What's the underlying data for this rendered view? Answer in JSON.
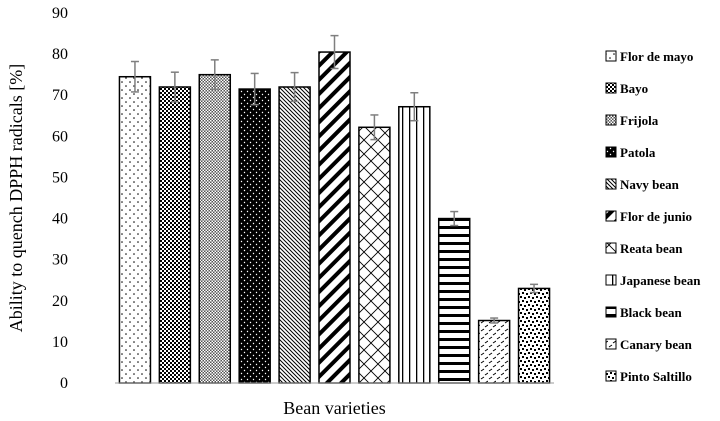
{
  "chart_data": {
    "type": "bar",
    "title": "",
    "xlabel": "Bean varieties",
    "ylabel": "Ability to quench DPPH radicals [%]",
    "ylim": [
      0,
      90
    ],
    "yticks": [
      0,
      10,
      20,
      30,
      40,
      50,
      60,
      70,
      80,
      90
    ],
    "grid": false,
    "legend_position": "right",
    "categories": [
      "Flor de mayo",
      "Bayo",
      "Frijola",
      "Patola",
      "Navy bean",
      "Flor de junio",
      "Reata bean",
      "Japanese bean",
      "Black bean",
      "Canary bean",
      "Pinto Saltillo"
    ],
    "values": [
      74.5,
      72,
      75,
      71.5,
      72,
      80.5,
      62.2,
      67.2,
      40,
      15.2,
      23
    ],
    "errors": [
      3.7,
      3.6,
      3.6,
      3.8,
      3.5,
      4.0,
      3.0,
      3.4,
      1.7,
      0.6,
      1.0
    ],
    "patterns": [
      "dots-sparse",
      "checker-fine",
      "checker-dense",
      "dots-dark",
      "diag-thin",
      "diag-wide",
      "lattice",
      "vertical",
      "horizontal",
      "dash-diag",
      "confetti"
    ]
  }
}
